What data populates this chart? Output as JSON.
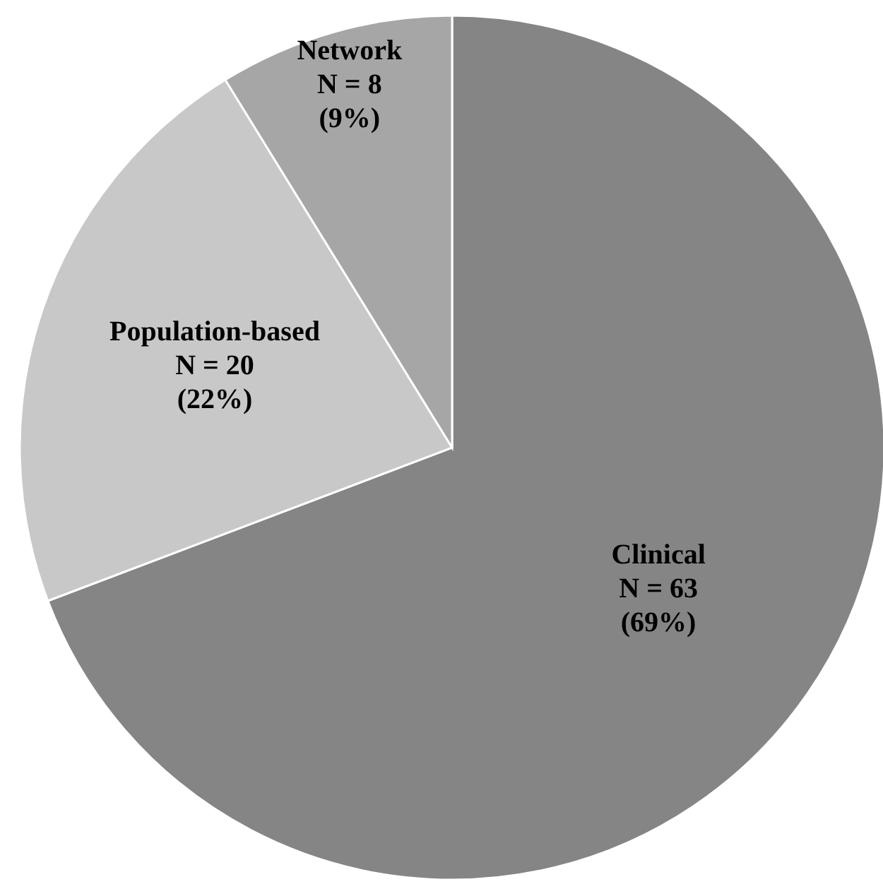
{
  "chart_data": {
    "type": "pie",
    "categories": [
      "Clinical",
      "Population-based",
      "Network"
    ],
    "values": [
      63,
      20,
      8
    ],
    "colors": [
      "#858585",
      "#c8c8c8",
      "#a6a6a6"
    ],
    "value_labels": [
      "N = 63\n(69%)",
      "N = 20\n(22%)",
      "N = 8\n(9%)"
    ]
  }
}
